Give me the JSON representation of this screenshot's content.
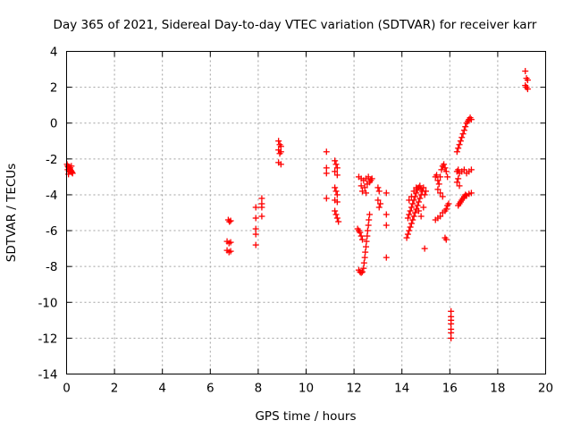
{
  "chart_data": {
    "type": "scatter",
    "title": "Day 365 of 2021, Sidereal Day-to-day VTEC variation (SDTVAR) for receiver karr",
    "xlabel": "GPS time / hours",
    "ylabel": "SDTVAR / TECUs",
    "xlim": [
      0,
      20
    ],
    "ylim": [
      -14,
      4
    ],
    "xticks": [
      0,
      2,
      4,
      6,
      8,
      10,
      12,
      14,
      16,
      18,
      20
    ],
    "yticks": [
      4,
      2,
      0,
      -2,
      -4,
      -6,
      -8,
      -10,
      -12,
      -14
    ],
    "marker": "plus",
    "grid": true,
    "color": "#ff0000",
    "series": [
      {
        "name": "SDTVAR",
        "points": [
          [
            0.02,
            -2.3
          ],
          [
            0.05,
            -2.4
          ],
          [
            0.08,
            -2.45
          ],
          [
            0.1,
            -2.5
          ],
          [
            0.12,
            -2.55
          ],
          [
            0.15,
            -2.6
          ],
          [
            0.18,
            -2.65
          ],
          [
            0.2,
            -2.7
          ],
          [
            0.22,
            -2.75
          ],
          [
            0.25,
            -2.8
          ],
          [
            0.05,
            -2.6
          ],
          [
            0.1,
            -2.7
          ],
          [
            0.15,
            -2.5
          ],
          [
            0.2,
            -2.4
          ],
          [
            0.08,
            -2.85
          ],
          [
            6.75,
            -5.4
          ],
          [
            6.8,
            -5.5
          ],
          [
            6.85,
            -5.45
          ],
          [
            6.7,
            -6.6
          ],
          [
            6.78,
            -6.7
          ],
          [
            6.85,
            -6.65
          ],
          [
            6.7,
            -7.1
          ],
          [
            6.78,
            -7.2
          ],
          [
            6.85,
            -7.15
          ],
          [
            7.9,
            -4.7
          ],
          [
            7.9,
            -5.3
          ],
          [
            7.9,
            -5.9
          ],
          [
            7.9,
            -6.2
          ],
          [
            7.9,
            -6.8
          ],
          [
            8.15,
            -4.2
          ],
          [
            8.15,
            -4.5
          ],
          [
            8.15,
            -4.7
          ],
          [
            8.15,
            -5.2
          ],
          [
            8.85,
            -1.0
          ],
          [
            8.9,
            -1.2
          ],
          [
            8.95,
            -1.3
          ],
          [
            8.85,
            -1.5
          ],
          [
            8.95,
            -1.6
          ],
          [
            8.9,
            -1.7
          ],
          [
            8.85,
            -2.2
          ],
          [
            8.95,
            -2.3
          ],
          [
            10.85,
            -1.6
          ],
          [
            10.85,
            -2.5
          ],
          [
            10.85,
            -2.8
          ],
          [
            10.85,
            -4.2
          ],
          [
            11.2,
            -2.1
          ],
          [
            11.25,
            -2.3
          ],
          [
            11.3,
            -2.5
          ],
          [
            11.2,
            -2.7
          ],
          [
            11.3,
            -2.9
          ],
          [
            11.2,
            -3.6
          ],
          [
            11.25,
            -3.8
          ],
          [
            11.3,
            -4.0
          ],
          [
            11.2,
            -4.3
          ],
          [
            11.3,
            -4.4
          ],
          [
            11.2,
            -4.9
          ],
          [
            11.25,
            -5.1
          ],
          [
            11.3,
            -5.3
          ],
          [
            11.35,
            -5.5
          ],
          [
            12.15,
            -5.9
          ],
          [
            12.2,
            -6.0
          ],
          [
            12.25,
            -6.1
          ],
          [
            12.3,
            -6.3
          ],
          [
            12.35,
            -6.5
          ],
          [
            12.2,
            -8.2
          ],
          [
            12.25,
            -8.3
          ],
          [
            12.3,
            -8.35
          ],
          [
            12.35,
            -8.3
          ],
          [
            12.4,
            -8.1
          ],
          [
            12.42,
            -7.8
          ],
          [
            12.45,
            -7.5
          ],
          [
            12.47,
            -7.2
          ],
          [
            12.5,
            -6.9
          ],
          [
            12.52,
            -6.6
          ],
          [
            12.55,
            -6.3
          ],
          [
            12.57,
            -6.0
          ],
          [
            12.6,
            -5.7
          ],
          [
            12.62,
            -5.4
          ],
          [
            12.65,
            -5.1
          ],
          [
            12.2,
            -3.0
          ],
          [
            12.3,
            -3.1
          ],
          [
            12.4,
            -3.2
          ],
          [
            12.5,
            -3.1
          ],
          [
            12.6,
            -3.0
          ],
          [
            12.7,
            -3.2
          ],
          [
            12.3,
            -3.5
          ],
          [
            12.45,
            -3.6
          ],
          [
            12.55,
            -3.4
          ],
          [
            12.65,
            -3.3
          ],
          [
            12.75,
            -3.1
          ],
          [
            12.35,
            -3.8
          ],
          [
            12.5,
            -3.9
          ],
          [
            13.0,
            -3.6
          ],
          [
            13.05,
            -3.8
          ],
          [
            13.1,
            -4.5
          ],
          [
            13.05,
            -4.7
          ],
          [
            13.0,
            -4.3
          ],
          [
            13.35,
            -3.9
          ],
          [
            13.35,
            -5.1
          ],
          [
            13.35,
            -5.7
          ],
          [
            13.35,
            -7.5
          ],
          [
            14.2,
            -6.4
          ],
          [
            14.25,
            -6.2
          ],
          [
            14.3,
            -6.0
          ],
          [
            14.35,
            -5.8
          ],
          [
            14.4,
            -5.6
          ],
          [
            14.45,
            -5.4
          ],
          [
            14.5,
            -5.2
          ],
          [
            14.55,
            -5.0
          ],
          [
            14.6,
            -4.8
          ],
          [
            14.65,
            -4.6
          ],
          [
            14.7,
            -4.4
          ],
          [
            14.75,
            -4.2
          ],
          [
            14.8,
            -4.0
          ],
          [
            14.85,
            -3.8
          ],
          [
            14.25,
            -5.3
          ],
          [
            14.3,
            -5.1
          ],
          [
            14.35,
            -4.9
          ],
          [
            14.4,
            -4.7
          ],
          [
            14.45,
            -4.5
          ],
          [
            14.5,
            -4.3
          ],
          [
            14.55,
            -4.1
          ],
          [
            14.6,
            -3.9
          ],
          [
            14.65,
            -3.7
          ],
          [
            14.7,
            -3.6
          ],
          [
            14.75,
            -3.5
          ],
          [
            14.8,
            -3.7
          ],
          [
            14.9,
            -3.6
          ],
          [
            15.0,
            -3.8
          ],
          [
            14.95,
            -4.0
          ],
          [
            14.3,
            -4.3
          ],
          [
            14.4,
            -4.1
          ],
          [
            14.5,
            -3.8
          ],
          [
            14.6,
            -3.6
          ],
          [
            14.7,
            -4.9
          ],
          [
            14.8,
            -5.2
          ],
          [
            14.9,
            -4.7
          ],
          [
            14.95,
            -7.0
          ],
          [
            15.4,
            -3.0
          ],
          [
            15.45,
            -2.9
          ],
          [
            15.5,
            -3.2
          ],
          [
            15.55,
            -3.4
          ],
          [
            15.6,
            -3.0
          ],
          [
            15.65,
            -2.6
          ],
          [
            15.7,
            -2.4
          ],
          [
            15.75,
            -2.3
          ],
          [
            15.8,
            -2.5
          ],
          [
            15.85,
            -2.7
          ],
          [
            15.9,
            -3.0
          ],
          [
            15.5,
            -3.7
          ],
          [
            15.6,
            -3.9
          ],
          [
            15.7,
            -4.1
          ],
          [
            15.4,
            -5.4
          ],
          [
            15.5,
            -5.3
          ],
          [
            15.6,
            -5.2
          ],
          [
            15.7,
            -5.0
          ],
          [
            15.8,
            -4.9
          ],
          [
            15.85,
            -4.8
          ],
          [
            15.9,
            -4.6
          ],
          [
            15.95,
            -4.5
          ],
          [
            15.8,
            -6.4
          ],
          [
            15.85,
            -6.5
          ],
          [
            16.05,
            -10.5
          ],
          [
            16.05,
            -10.8
          ],
          [
            16.05,
            -11.0
          ],
          [
            16.05,
            -11.2
          ],
          [
            16.05,
            -11.5
          ],
          [
            16.05,
            -11.7
          ],
          [
            16.05,
            -12.0
          ],
          [
            16.3,
            -1.6
          ],
          [
            16.35,
            -1.4
          ],
          [
            16.4,
            -1.2
          ],
          [
            16.45,
            -1.0
          ],
          [
            16.5,
            -0.8
          ],
          [
            16.55,
            -0.6
          ],
          [
            16.6,
            -0.4
          ],
          [
            16.65,
            -0.2
          ],
          [
            16.7,
            0.0
          ],
          [
            16.75,
            0.1
          ],
          [
            16.8,
            0.2
          ],
          [
            16.85,
            0.3
          ],
          [
            16.9,
            0.2
          ],
          [
            16.3,
            -2.7
          ],
          [
            16.35,
            -2.6
          ],
          [
            16.4,
            -2.8
          ],
          [
            16.5,
            -2.7
          ],
          [
            16.6,
            -2.6
          ],
          [
            16.7,
            -2.8
          ],
          [
            16.8,
            -2.7
          ],
          [
            16.9,
            -2.6
          ],
          [
            16.3,
            -3.3
          ],
          [
            16.4,
            -3.5
          ],
          [
            16.35,
            -3.1
          ],
          [
            16.35,
            -4.6
          ],
          [
            16.4,
            -4.5
          ],
          [
            16.45,
            -4.4
          ],
          [
            16.5,
            -4.3
          ],
          [
            16.55,
            -4.2
          ],
          [
            16.6,
            -4.1
          ],
          [
            16.65,
            -4.0
          ],
          [
            16.7,
            -4.05
          ],
          [
            16.8,
            -3.95
          ],
          [
            16.9,
            -3.9
          ],
          [
            19.15,
            2.9
          ],
          [
            19.2,
            2.5
          ],
          [
            19.25,
            2.4
          ],
          [
            19.15,
            2.1
          ],
          [
            19.2,
            2.0
          ],
          [
            19.25,
            1.9
          ]
        ]
      }
    ]
  }
}
